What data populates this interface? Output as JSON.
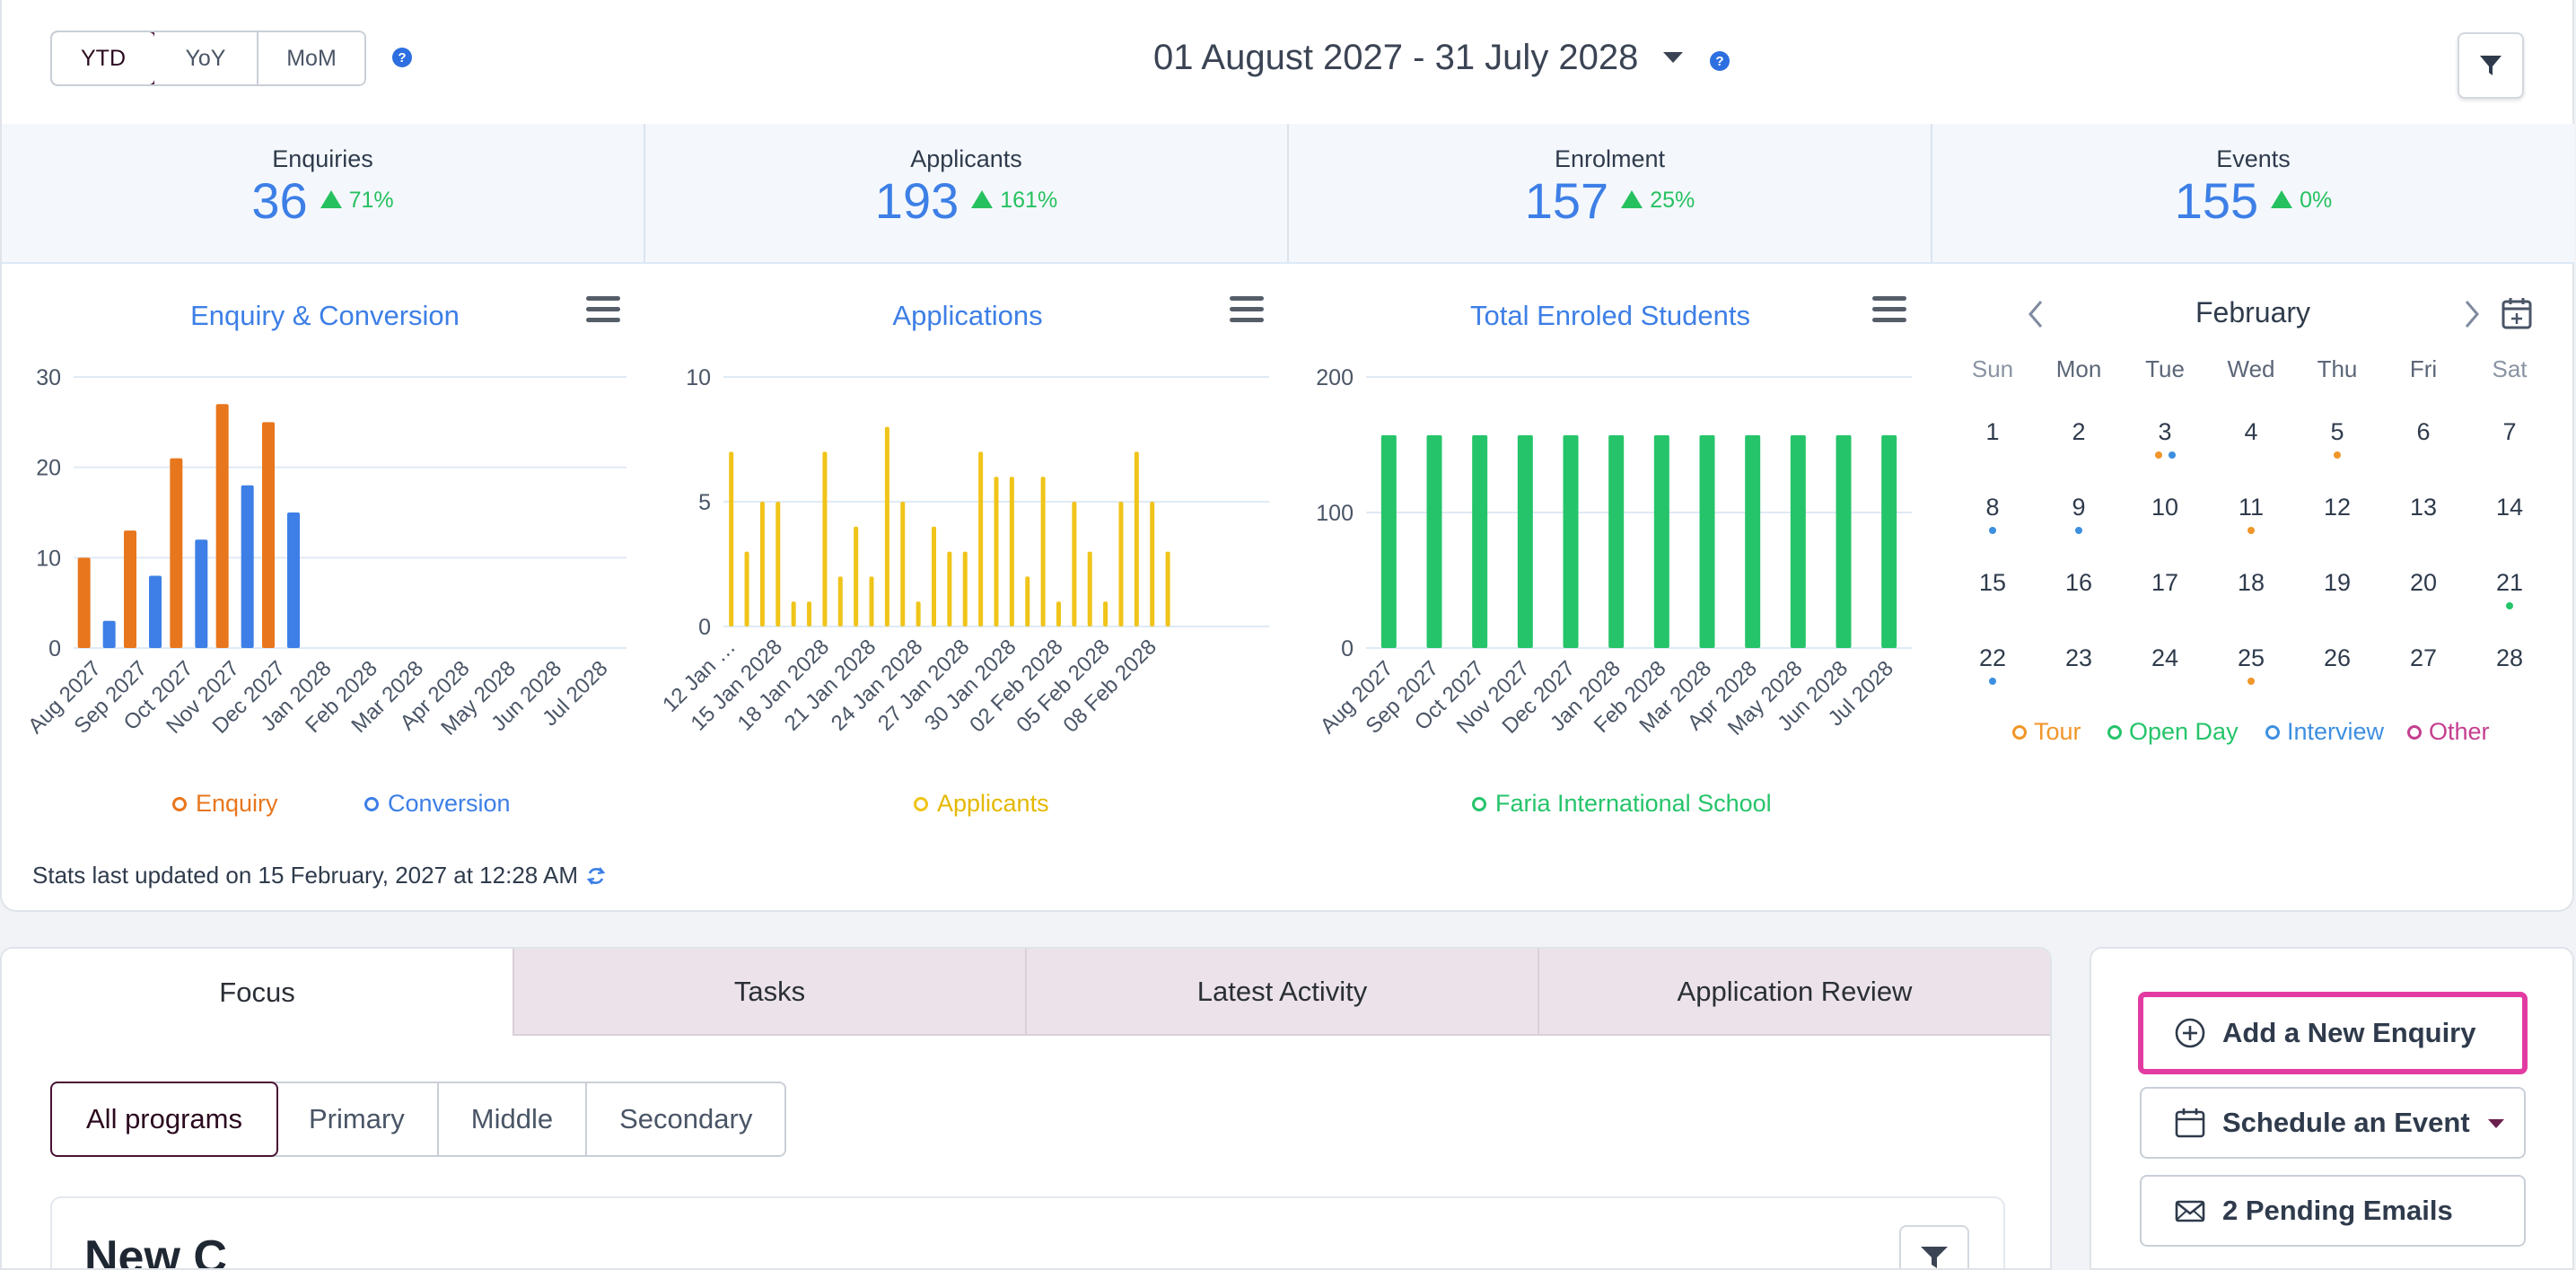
{
  "period_toggle": {
    "options": [
      "YTD",
      "YoY",
      "MoM"
    ],
    "active": "YTD"
  },
  "date_range": "01 August 2027 - 31 July 2028",
  "stats": [
    {
      "label": "Enquiries",
      "value": "36",
      "change": "71%"
    },
    {
      "label": "Applicants",
      "value": "193",
      "change": "161%"
    },
    {
      "label": "Enrolment",
      "value": "157",
      "change": "25%"
    },
    {
      "label": "Events",
      "value": "155",
      "change": "0%"
    }
  ],
  "colors": {
    "enquiry": "#e8761c",
    "conversion": "#3d7fe6",
    "applicants": "#f0c419",
    "enrolled": "#26c46a",
    "tour": "#f0962a",
    "open_day": "#26c46a",
    "interview": "#3d8fe0",
    "other": "#c43f8f"
  },
  "chart_data": [
    {
      "type": "bar",
      "title": "Enquiry & Conversion",
      "categories": [
        "Aug 2027",
        "Sep 2027",
        "Oct 2027",
        "Nov 2027",
        "Dec 2027",
        "Jan 2028",
        "Feb 2028",
        "Mar 2028",
        "Apr 2028",
        "May 2028",
        "Jun 2028",
        "Jul 2028"
      ],
      "series": [
        {
          "name": "Enquiry",
          "values": [
            10,
            13,
            21,
            27,
            25,
            null,
            null,
            null,
            null,
            null,
            null,
            null
          ]
        },
        {
          "name": "Conversion",
          "values": [
            3,
            8,
            12,
            18,
            15,
            null,
            null,
            null,
            null,
            null,
            null,
            null
          ]
        }
      ],
      "ylim": [
        0,
        30
      ],
      "yticks": [
        0,
        10,
        20,
        30
      ]
    },
    {
      "type": "bar",
      "title": "Applications",
      "categories": [
        "12 Jan 2028",
        "13 Jan 2028",
        "14 Jan 2028",
        "15 Jan 2028",
        "16 Jan 2028",
        "17 Jan 2028",
        "18 Jan 2028",
        "19 Jan 2028",
        "20 Jan 2028",
        "21 Jan 2028",
        "22 Jan 2028",
        "23 Jan 2028",
        "24 Jan 2028",
        "25 Jan 2028",
        "26 Jan 2028",
        "27 Jan 2028",
        "28 Jan 2028",
        "29 Jan 2028",
        "30 Jan 2028",
        "31 Jan 2028",
        "01 Feb 2028",
        "02 Feb 2028",
        "03 Feb 2028",
        "04 Feb 2028",
        "05 Feb 2028",
        "06 Feb 2028",
        "07 Feb 2028",
        "08 Feb 2028",
        "09 Feb 2028",
        "10 Feb 2028",
        "11 Feb 2028",
        "12 Feb 2028",
        "13 Feb 2028",
        "14 Feb 2028",
        "15 Feb 2028"
      ],
      "tick_labels": [
        "12 Jan …",
        "15 Jan 2028",
        "18 Jan 2028",
        "21 Jan 2028",
        "24 Jan 2028",
        "27 Jan 2028",
        "30 Jan 2028",
        "02 Feb 2028",
        "05 Feb 2028",
        "08 Feb 2028"
      ],
      "series": [
        {
          "name": "Applicants",
          "values": [
            7,
            3,
            5,
            5,
            1,
            1,
            7,
            2,
            4,
            2,
            8,
            5,
            1,
            4,
            3,
            3,
            7,
            6,
            6,
            2,
            6,
            1,
            5,
            3,
            1,
            5,
            7,
            5,
            3,
            0,
            0,
            0,
            0,
            0,
            0
          ]
        }
      ],
      "ylim": [
        0,
        10
      ],
      "yticks": [
        0,
        5,
        10
      ]
    },
    {
      "type": "bar",
      "title": "Total Enroled Students",
      "categories": [
        "Aug 2027",
        "Sep 2027",
        "Oct 2027",
        "Nov 2027",
        "Dec 2027",
        "Jan 2028",
        "Feb 2028",
        "Mar 2028",
        "Apr 2028",
        "May 2028",
        "Jun 2028",
        "Jul 2028"
      ],
      "series": [
        {
          "name": "Faria International School",
          "values": [
            157,
            157,
            157,
            157,
            157,
            157,
            157,
            157,
            157,
            157,
            157,
            157
          ]
        }
      ],
      "ylim": [
        0,
        200
      ],
      "yticks": [
        0,
        100,
        200
      ]
    }
  ],
  "calendar": {
    "month": "February",
    "weekdays": [
      "Sun",
      "Mon",
      "Tue",
      "Wed",
      "Thu",
      "Fri",
      "Sat"
    ],
    "weeks": [
      [
        1,
        2,
        3,
        4,
        5,
        6,
        7
      ],
      [
        8,
        9,
        10,
        11,
        12,
        13,
        14
      ],
      [
        15,
        16,
        17,
        18,
        19,
        20,
        21
      ],
      [
        22,
        23,
        24,
        25,
        26,
        27,
        28
      ]
    ],
    "events": {
      "3": [
        "tour",
        "interview"
      ],
      "5": [
        "tour"
      ],
      "8": [
        "interview"
      ],
      "9": [
        "interview"
      ],
      "11": [
        "tour"
      ],
      "21": [
        "open_day"
      ],
      "22": [
        "interview"
      ],
      "25": [
        "tour"
      ]
    },
    "legend": [
      {
        "key": "tour",
        "label": "Tour"
      },
      {
        "key": "open_day",
        "label": "Open Day"
      },
      {
        "key": "interview",
        "label": "Interview"
      },
      {
        "key": "other",
        "label": "Other"
      }
    ]
  },
  "stats_updated": "Stats last updated on 15 February, 2027 at 12:28 AM",
  "tabs": [
    "Focus",
    "Tasks",
    "Latest Activity",
    "Application Review"
  ],
  "program_filter": {
    "options": [
      "All programs",
      "Primary",
      "Middle",
      "Secondary"
    ],
    "active": "All programs"
  },
  "inner_card_title": "New C",
  "actions": {
    "add_enquiry": "Add a New Enquiry",
    "schedule_event": "Schedule an Event",
    "pending_emails": "2 Pending Emails"
  }
}
